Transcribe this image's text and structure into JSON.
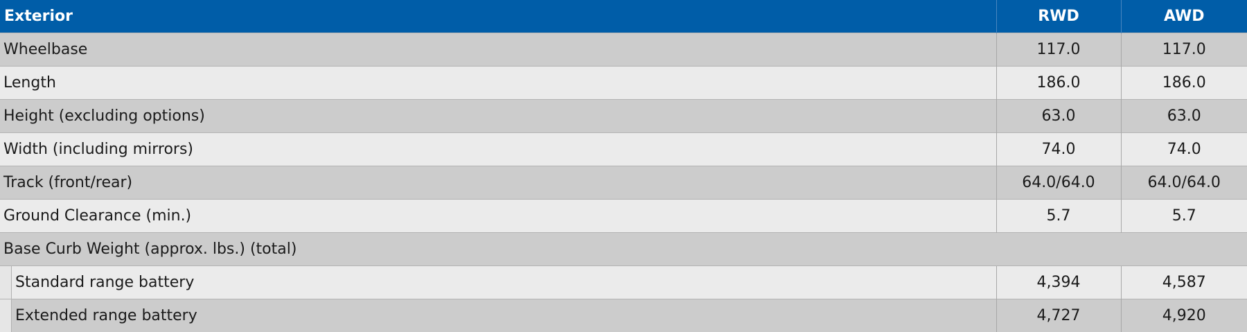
{
  "table": {
    "header": [
      "Exterior",
      "RWD",
      "AWD"
    ],
    "rows": [
      {
        "cells": [
          "Wheelbase",
          "117.0",
          "117.0"
        ]
      },
      {
        "cells": [
          "Length",
          "186.0",
          "186.0"
        ]
      },
      {
        "cells": [
          "Height (excluding options)",
          "63.0",
          "63.0"
        ]
      },
      {
        "cells": [
          "Width (including mirrors)",
          "74.0",
          "74.0"
        ]
      },
      {
        "cells": [
          "Track (front/rear)",
          "64.0/64.0",
          "64.0/64.0"
        ]
      },
      {
        "cells": [
          "Ground Clearance (min.)",
          "5.7",
          "5.7"
        ]
      },
      {
        "section": "Base Curb Weight (approx. lbs.) (total)",
        "rows": [
          [
            "Standard range battery",
            "4,394",
            "4,587"
          ],
          [
            "Extended range battery",
            "4,727",
            "4,920"
          ]
        ]
      }
    ]
  }
}
